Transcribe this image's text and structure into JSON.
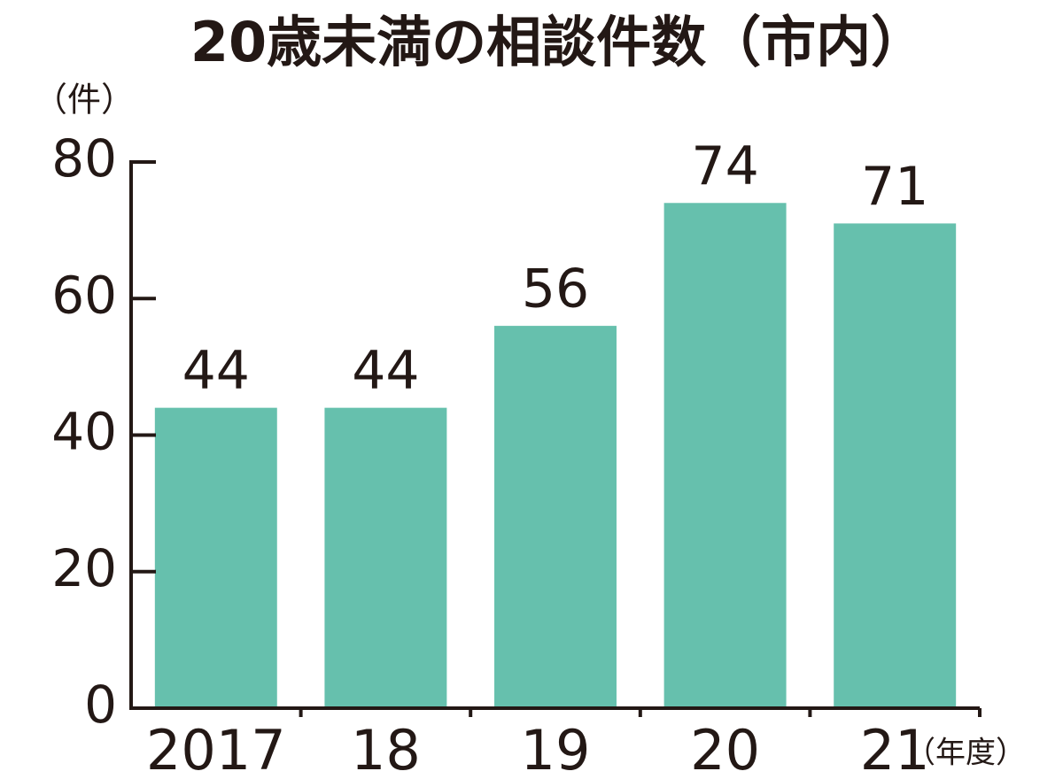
{
  "chart_data": {
    "type": "bar",
    "title": "20歳未満の相談件数（市内）",
    "y_unit": "（件）",
    "x_unit": "（年度）",
    "categories": [
      "2017",
      "18",
      "19",
      "20",
      "21"
    ],
    "values": [
      44,
      44,
      56,
      74,
      71
    ],
    "color": "#66c0ad",
    "ylim": [
      0,
      80
    ],
    "yticks": [
      0,
      20,
      40,
      60,
      80
    ]
  }
}
